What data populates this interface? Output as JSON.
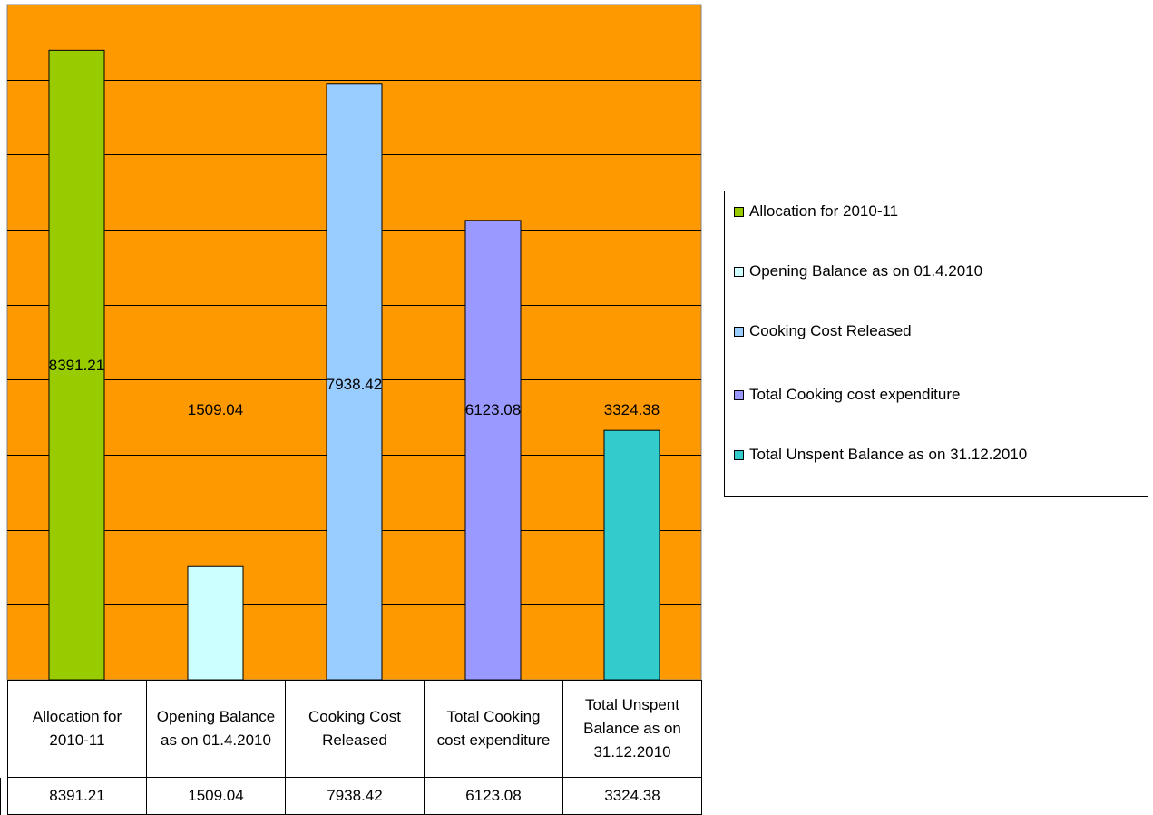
{
  "chart_data": {
    "type": "bar",
    "categories": [
      "Allocation for 2010-11",
      "Opening Balance as on 01.4.2010",
      "Cooking Cost Released",
      "Total Cooking cost expenditure",
      "Total Unspent Balance as on 31.12.2010"
    ],
    "category_lines": [
      [
        "Allocation for",
        "2010-11"
      ],
      [
        "Opening Balance",
        "as on 01.4.2010"
      ],
      [
        "Cooking Cost",
        "Released"
      ],
      [
        "Total Cooking",
        "cost expenditure"
      ],
      [
        "Total Unspent",
        "Balance as on",
        "31.12.2010"
      ]
    ],
    "values": [
      8391.21,
      1509.04,
      7938.42,
      6123.08,
      3324.38
    ],
    "value_labels": [
      "8391.21",
      "1509.04",
      "7938.42",
      "6123.08",
      "3324.38"
    ],
    "colors": [
      "#99CC00",
      "#CCFFFF",
      "#99CCFF",
      "#9999FF",
      "#33CCCC"
    ],
    "plot_background": "#FF9900",
    "ylim": [
      0,
      9000
    ],
    "gridline_step": 1000,
    "grid": true,
    "legend": {
      "placement": "right",
      "entries": [
        "Allocation for 2010-11",
        "Opening Balance as on 01.4.2010",
        "Cooking Cost Released",
        "Total Cooking cost expenditure",
        "Total Unspent Balance as on 31.12.2010"
      ]
    },
    "data_table": true
  }
}
